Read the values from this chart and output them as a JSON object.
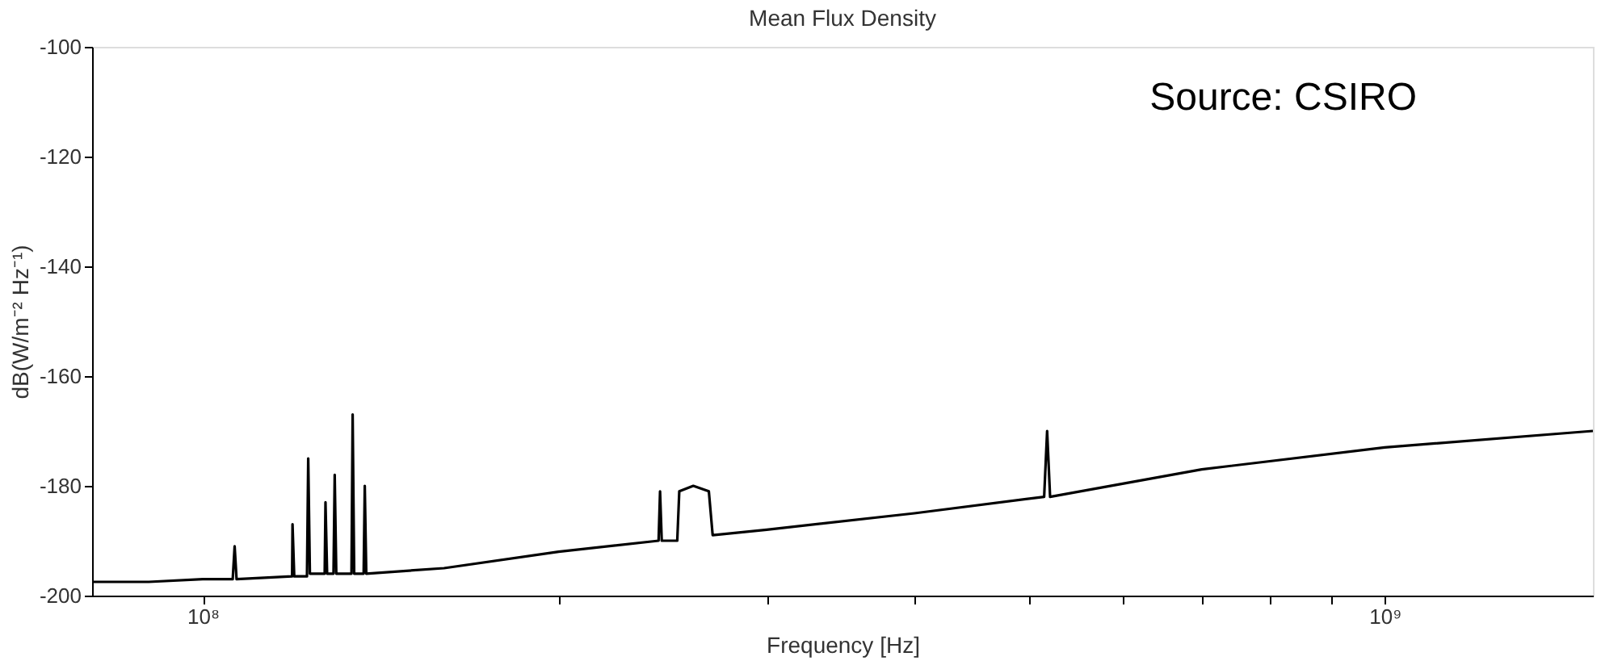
{
  "chart_data": {
    "type": "line",
    "title": "Mean Flux Density",
    "xlabel": "Frequency [Hz]",
    "ylabel": "dB(W/m⁻² Hz⁻¹)",
    "x": [
      80600000.0,
      90000000.0,
      100000000.0,
      106000000.0,
      106400000.0,
      106800000.0,
      119000000.0,
      119100000.0,
      119500000.0,
      122500000.0,
      122800000.0,
      123200000.0,
      126800000.0,
      127000000.0,
      127400000.0,
      129000000.0,
      129300000.0,
      129700000.0,
      133600000.0,
      133900000.0,
      134300000.0,
      136800000.0,
      137100000.0,
      137500000.0,
      160000000.0,
      200000000.0,
      243000000.0,
      243700000.0,
      244500000.0,
      252000000.0,
      253000000.0,
      260000000.0,
      268000000.0,
      270000000.0,
      300000000.0,
      400000000.0,
      515000000.0,
      518000000.0,
      521000000.0,
      700000000.0,
      1000000000.0,
      1500000000.0
    ],
    "series": [
      {
        "color": "#000000",
        "values": [
          -197.5,
          -197.5,
          -197,
          -197,
          -191,
          -197,
          -196.5,
          -187,
          -196.5,
          -196.5,
          -175,
          -196,
          -196,
          -183,
          -196,
          -196,
          -178,
          -196,
          -196,
          -167,
          -196,
          -196,
          -180,
          -196,
          -195,
          -192,
          -190,
          -181,
          -190,
          -190,
          -181,
          -180,
          -181,
          -189,
          -188,
          -185,
          -182,
          -170,
          -182,
          -177,
          -173,
          -170
        ]
      }
    ],
    "xlim": [
      80600000.0,
      1500000000.0
    ],
    "ylim": [
      -200,
      -100
    ],
    "xticks": [
      {
        "value": 100000000.0,
        "label": "10⁸"
      },
      {
        "value": 200000000.0,
        "label": null
      },
      {
        "value": 300000000.0,
        "label": null
      },
      {
        "value": 400000000.0,
        "label": null
      },
      {
        "value": 500000000.0,
        "label": null
      },
      {
        "value": 600000000.0,
        "label": null
      },
      {
        "value": 700000000.0,
        "label": null
      },
      {
        "value": 800000000.0,
        "label": null
      },
      {
        "value": 900000000.0,
        "label": null
      },
      {
        "value": 1000000000.0,
        "label": "10⁹"
      }
    ],
    "yticks": [
      -200,
      -180,
      -160,
      -140,
      -120,
      -100
    ],
    "log": "x",
    "grid": false,
    "annotations": [
      "Source: CSIRO"
    ]
  }
}
